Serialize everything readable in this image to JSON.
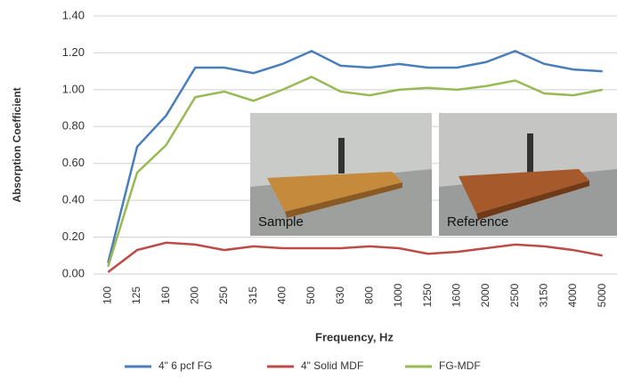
{
  "chart_data": {
    "type": "line",
    "x_label": "Frequency, Hz",
    "y_label": "Absorption Coefficient",
    "categories": [
      "100",
      "125",
      "160",
      "200",
      "250",
      "315",
      "400",
      "500",
      "630",
      "800",
      "1000",
      "1250",
      "1600",
      "2000",
      "2500",
      "3150",
      "4000",
      "5000"
    ],
    "series": [
      {
        "name": "4\" 6 pcf FG",
        "color": "#4a7ebb",
        "values": [
          0.06,
          0.69,
          0.86,
          1.12,
          1.12,
          1.09,
          1.14,
          1.21,
          1.13,
          1.12,
          1.14,
          1.12,
          1.12,
          1.15,
          1.21,
          1.14,
          1.11,
          1.1
        ]
      },
      {
        "name": "4\" Solid MDF",
        "color": "#be4b48",
        "values": [
          0.01,
          0.13,
          0.17,
          0.16,
          0.13,
          0.15,
          0.14,
          0.14,
          0.14,
          0.15,
          0.14,
          0.11,
          0.12,
          0.14,
          0.16,
          0.15,
          0.13,
          0.1
        ]
      },
      {
        "name": "FG-MDF",
        "color": "#98b954",
        "values": [
          0.04,
          0.55,
          0.7,
          0.96,
          0.99,
          0.94,
          1.0,
          1.07,
          0.99,
          0.97,
          1.0,
          1.01,
          1.0,
          1.02,
          1.05,
          0.98,
          0.97,
          1.0
        ]
      }
    ],
    "ylim": [
      0,
      1.4
    ],
    "yticks": [
      {
        "value": 0,
        "label": "0.00"
      },
      {
        "value": 0.2,
        "label": "0.20"
      },
      {
        "value": 0.4,
        "label": "0.40"
      },
      {
        "value": 0.6,
        "label": "0.60"
      },
      {
        "value": 0.8,
        "label": "0.80"
      },
      {
        "value": 1.0,
        "label": "1.00"
      },
      {
        "value": 1.2,
        "label": "1.20"
      },
      {
        "value": 1.4,
        "label": "1.40"
      }
    ],
    "grid": true,
    "annotations": [
      "Sample",
      "Reference"
    ]
  }
}
